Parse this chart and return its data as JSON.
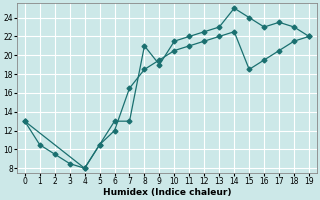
{
  "xlabel": "Humidex (Indice chaleur)",
  "bg_color": "#cce8e8",
  "line_color": "#1a7070",
  "grid_color": "#ffffff",
  "xlim": [
    -0.5,
    19.5
  ],
  "ylim": [
    7.5,
    25.5
  ],
  "xticks": [
    0,
    1,
    2,
    3,
    4,
    5,
    6,
    7,
    8,
    9,
    10,
    11,
    12,
    13,
    14,
    15,
    16,
    17,
    18,
    19
  ],
  "yticks": [
    8,
    10,
    12,
    14,
    16,
    18,
    20,
    22,
    24
  ],
  "line1_x": [
    0,
    1,
    2,
    3,
    4,
    5,
    6,
    7,
    8,
    9,
    10,
    11,
    12,
    13,
    14,
    15,
    16,
    17,
    18,
    19
  ],
  "line1_y": [
    13,
    10.5,
    9.5,
    8.5,
    8,
    10.5,
    13,
    13,
    21,
    19,
    21.5,
    22,
    22.5,
    23,
    25,
    24,
    23,
    23.5,
    23,
    22
  ],
  "line2_x": [
    0,
    4,
    5,
    6,
    7,
    8,
    9,
    10,
    11,
    12,
    13,
    14,
    15,
    16,
    17,
    18,
    19
  ],
  "line2_y": [
    13,
    8,
    10.5,
    12,
    16.5,
    18.5,
    19.5,
    20.5,
    21,
    21.5,
    22,
    22.5,
    18.5,
    19.5,
    20.5,
    21.5,
    22
  ],
  "marker_size": 2.5,
  "linewidth": 0.9,
  "tick_labelsize": 5.5,
  "xlabel_fontsize": 6.5
}
